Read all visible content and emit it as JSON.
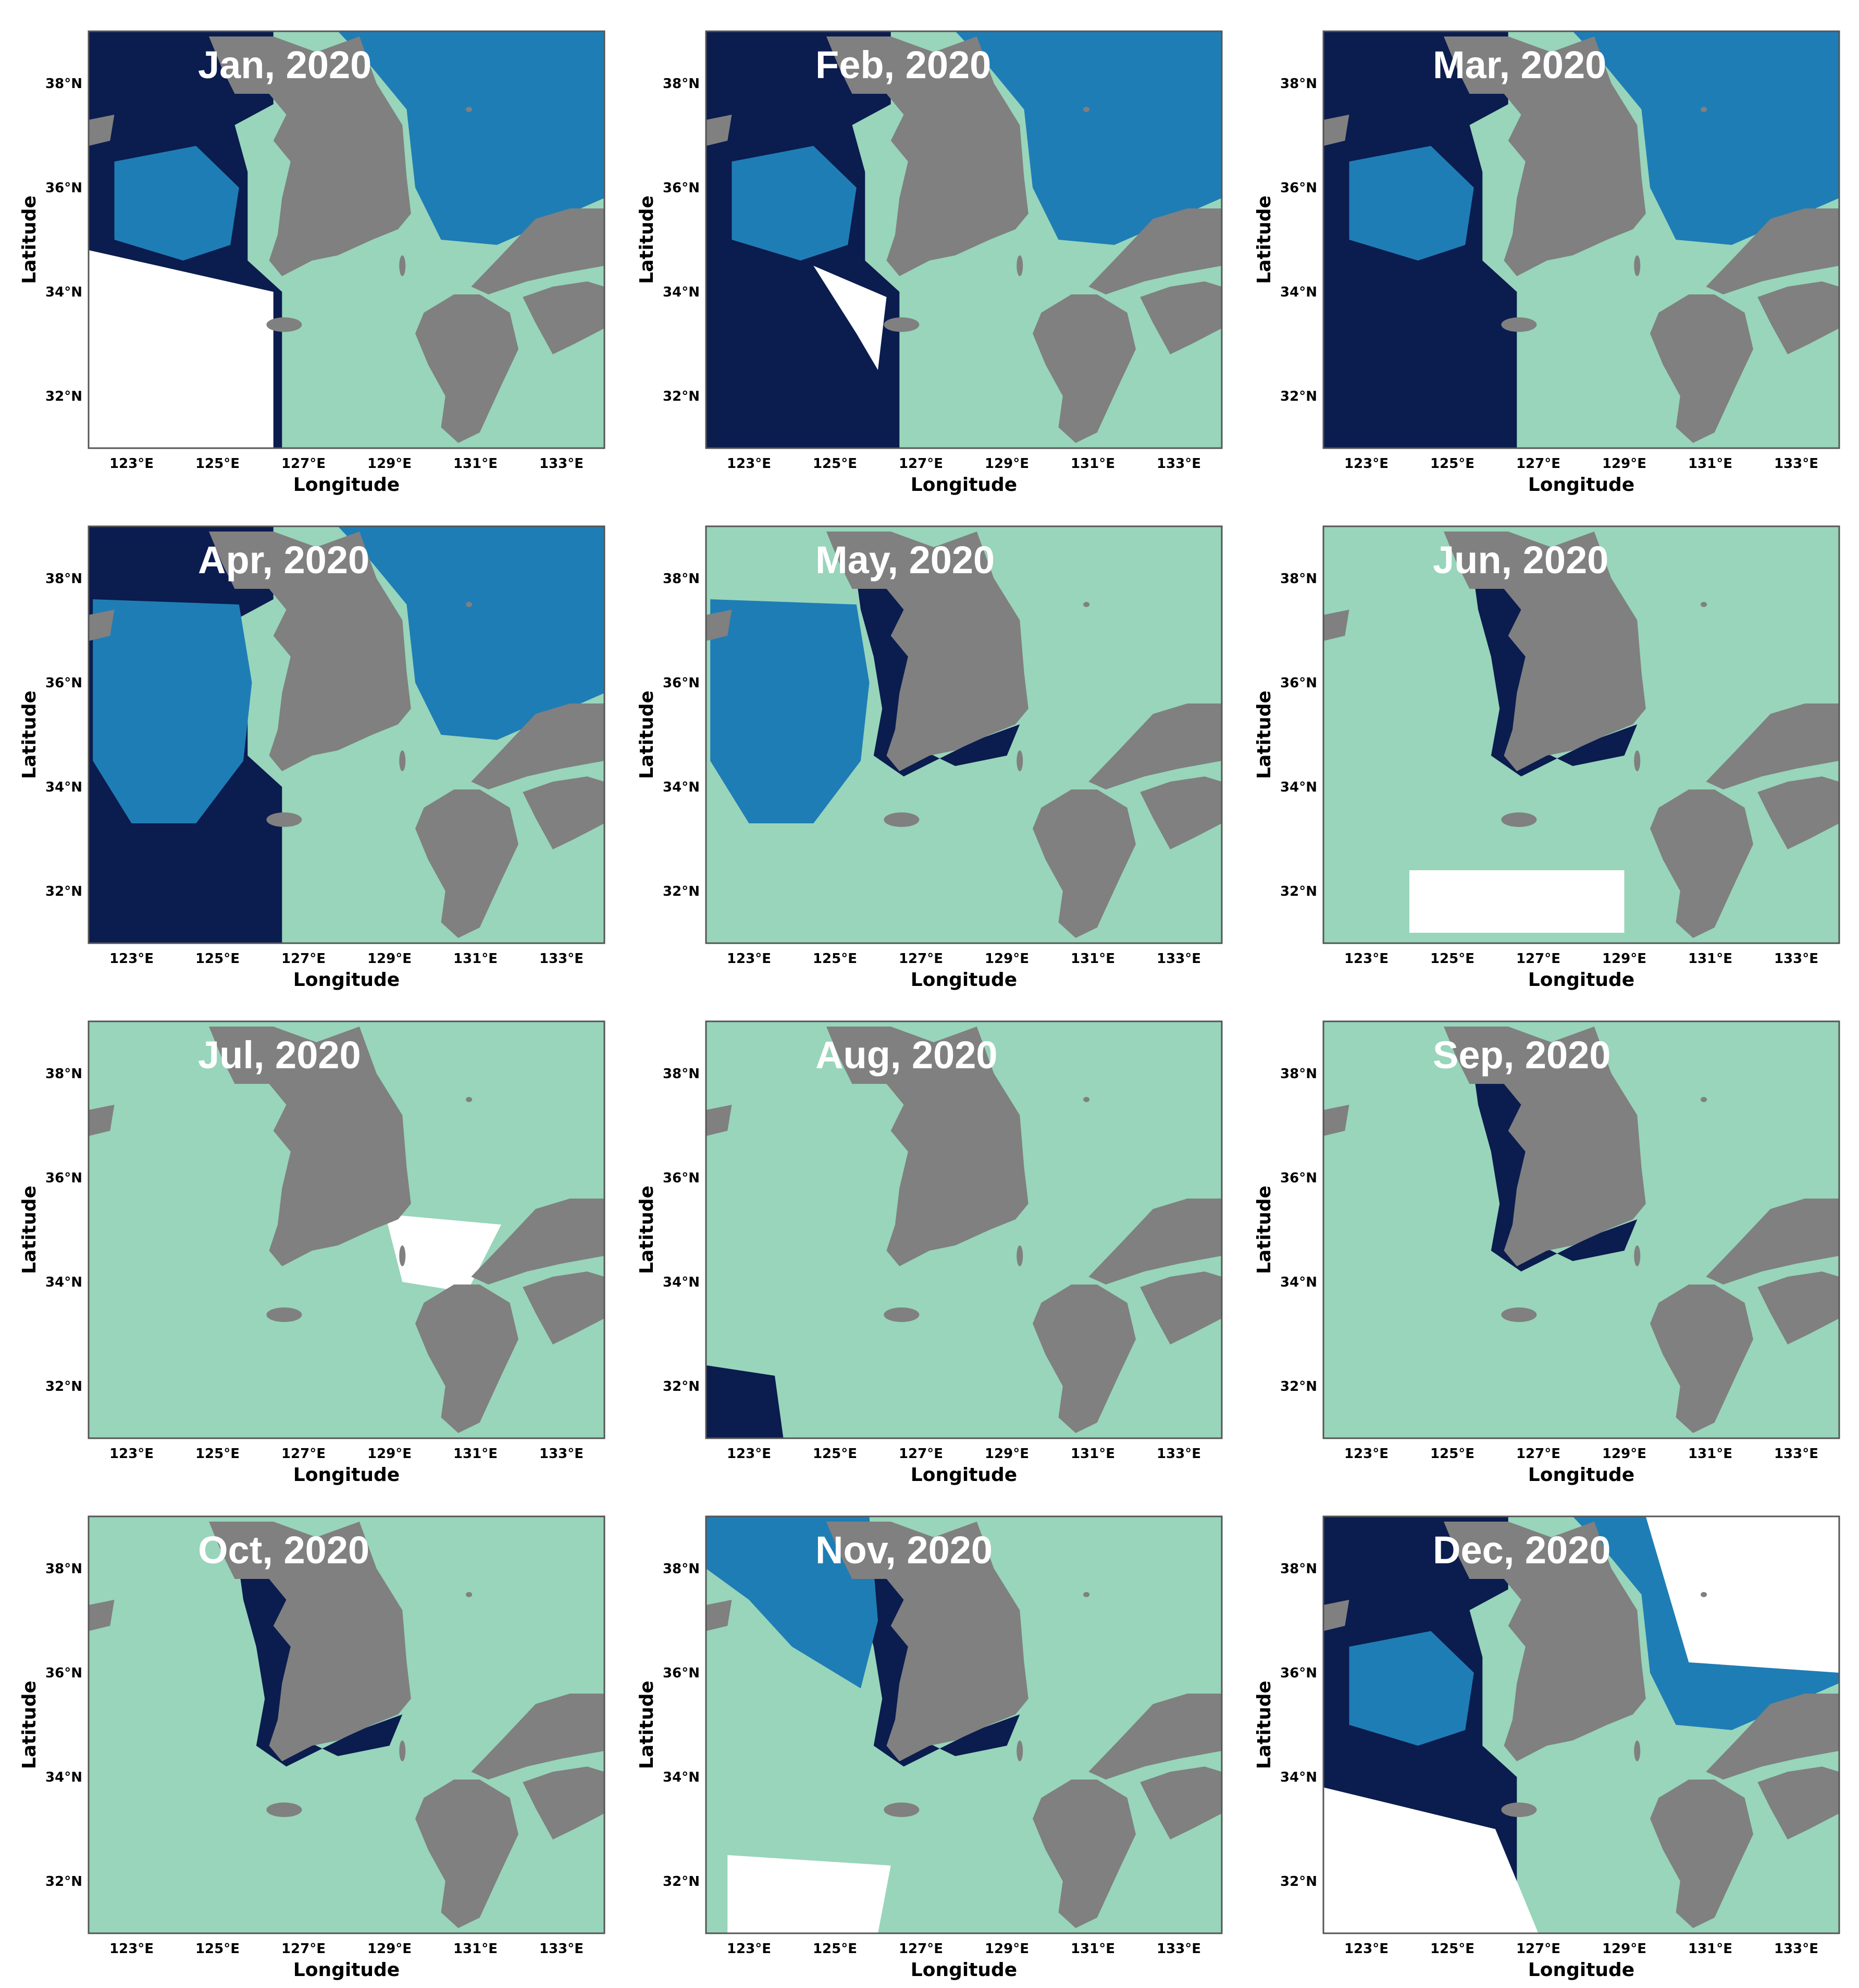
{
  "colors": {
    "class_1": "#0b1c4f",
    "class_2": "#1f7db5",
    "class_3": "#98d5bb",
    "land": "#808080",
    "no_data": "#ffffff",
    "frame": "#555555"
  },
  "axes": {
    "xlabel": "Longitude",
    "ylabel": "Latitude",
    "xticks": [
      "123°E",
      "125°E",
      "127°E",
      "129°E",
      "131°E",
      "133°E"
    ],
    "yticks": [
      "38°N",
      "36°N",
      "34°N",
      "32°N"
    ]
  },
  "map_extent": {
    "lon": [
      122,
      134
    ],
    "lat": [
      31,
      39
    ]
  },
  "panels": [
    {
      "title": "Jan, 2020",
      "dominant_class": "class_2"
    },
    {
      "title": "Feb, 2020",
      "dominant_class": "class_2"
    },
    {
      "title": "Mar, 2020",
      "dominant_class": "class_2"
    },
    {
      "title": "Apr, 2020",
      "dominant_class": "class_2"
    },
    {
      "title": "May, 2020",
      "dominant_class": "class_3"
    },
    {
      "title": "Jun, 2020",
      "dominant_class": "class_3"
    },
    {
      "title": "Jul, 2020",
      "dominant_class": "class_3"
    },
    {
      "title": "Aug, 2020",
      "dominant_class": "class_3"
    },
    {
      "title": "Sep, 2020",
      "dominant_class": "class_3"
    },
    {
      "title": "Oct, 2020",
      "dominant_class": "class_3"
    },
    {
      "title": "Nov, 2020",
      "dominant_class": "class_3"
    },
    {
      "title": "Dec, 2020",
      "dominant_class": "class_2"
    }
  ]
}
